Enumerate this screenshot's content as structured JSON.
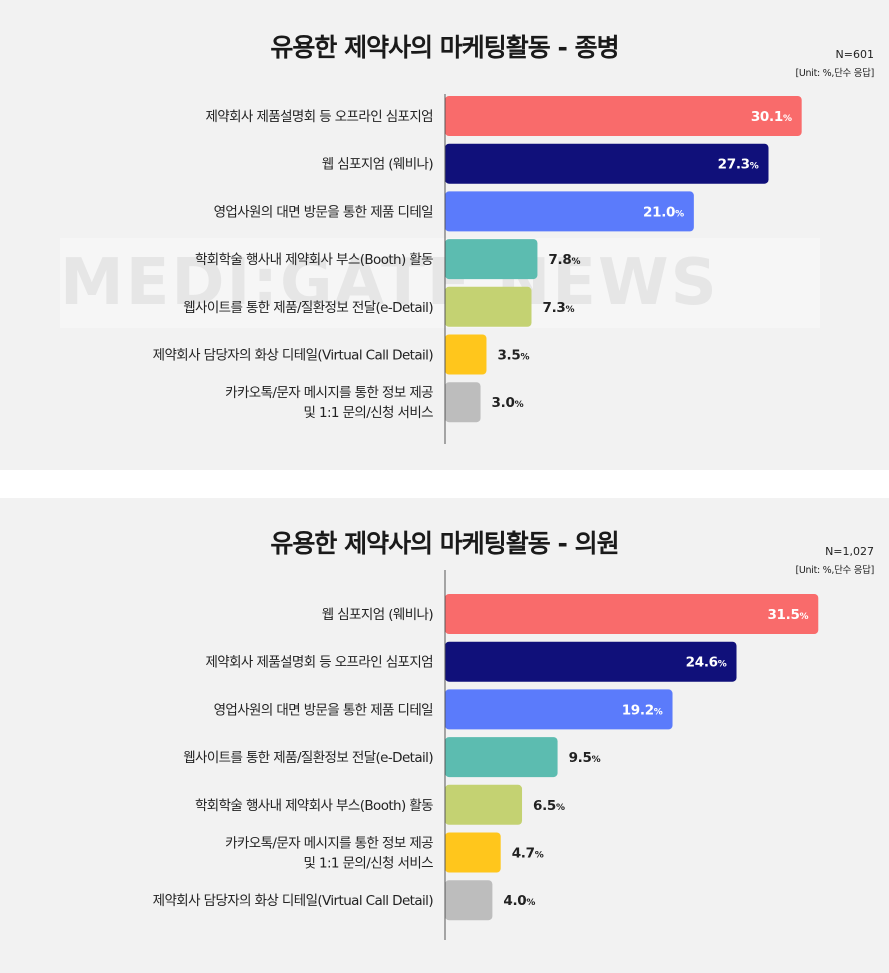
{
  "colors": [
    "#f96b6b",
    "#10107a",
    "#5b7bfb",
    "#5cbcb0",
    "#c4d272",
    "#ffc61c",
    "#bdbdbd"
  ],
  "text_colors_inside": "#ffffff",
  "text_colors_outside": "#222222",
  "watermark_text": "MEDI:GATE NEWS",
  "chart_data": [
    {
      "type": "bar",
      "orientation": "horizontal",
      "title": "유용한 제약사의 마케팅활동 - 종병",
      "sample": "N=601",
      "unit": "[Unit: %,단수 응답]",
      "categories": [
        [
          "제약회사 제품설명회 등 오프라인 심포지엄"
        ],
        [
          "웹 심포지엄 (웨비나)"
        ],
        [
          "영업사원의 대면 방문을 통한 제품 디테일"
        ],
        [
          "학회학술 행사내 제약회사 부스(Booth) 활동"
        ],
        [
          "웹사이트를 통한 제품/질환정보 전달(e-Detail)"
        ],
        [
          "제약회사 담당자의 화상 디테일(Virtual Call Detail)"
        ],
        [
          "카카오톡/문자 메시지를 통한 정보 제공",
          "및 1:1 문의/신청 서비스"
        ]
      ],
      "values": [
        30.1,
        27.3,
        21.0,
        7.8,
        7.3,
        3.5,
        3.0
      ],
      "value_labels": [
        "30.1",
        "27.3",
        "21.0",
        "7.8",
        "7.3",
        "3.5",
        "3.0"
      ],
      "unit_suffix": "%"
    },
    {
      "type": "bar",
      "orientation": "horizontal",
      "title": "유용한 제약사의 마케팅활동 - 의원",
      "sample": "N=1,027",
      "unit": "[Unit: %,단수 응답]",
      "categories": [
        [
          "웹 심포지엄 (웨비나)"
        ],
        [
          "제약회사 제품설명회 등 오프라인 심포지엄"
        ],
        [
          "영업사원의 대면 방문을 통한 제품 디테일"
        ],
        [
          "웹사이트를 통한 제품/질환정보 전달(e-Detail)"
        ],
        [
          "학회학술 행사내 제약회사 부스(Booth) 활동"
        ],
        [
          "카카오톡/문자 메시지를 통한 정보 제공",
          "및 1:1 문의/신청 서비스"
        ],
        [
          "제약회사 담당자의 화상 디테일(Virtual Call Detail)"
        ]
      ],
      "values": [
        31.5,
        24.6,
        19.2,
        9.5,
        6.5,
        4.7,
        4.0
      ],
      "value_labels": [
        "31.5",
        "24.6",
        "19.2",
        "9.5",
        "6.5",
        "4.7",
        "4.0"
      ],
      "unit_suffix": "%"
    }
  ]
}
